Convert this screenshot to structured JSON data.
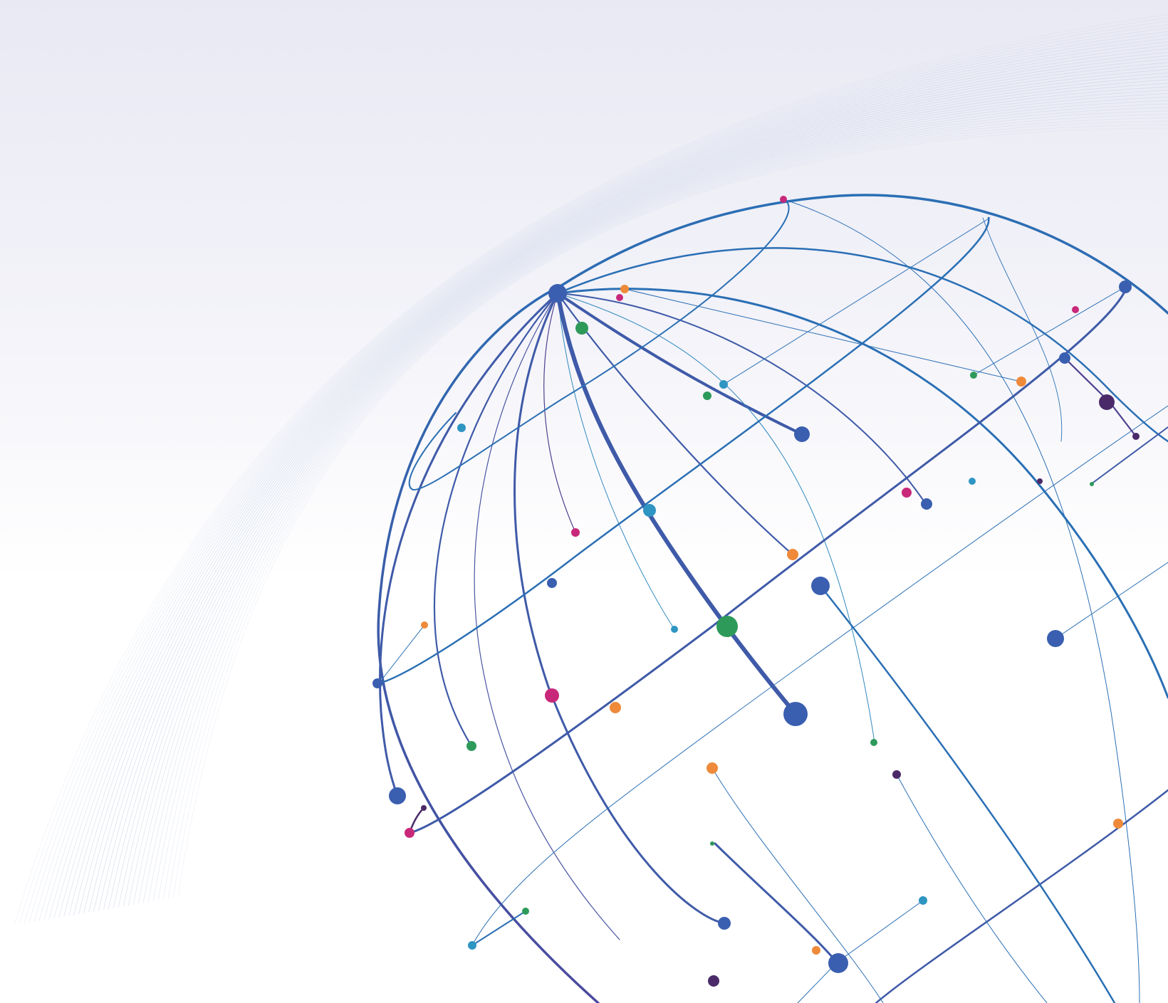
{
  "image": {
    "kind": "abstract globe wireframe illustration",
    "colors": {
      "background_top": "#e9e9f4",
      "background_bottom": "#ffffff",
      "swoosh": "#c9d3e8",
      "line_blue": "#2a6fb4",
      "line_indigo": "#4a4f9f",
      "node_blue": "#3a5fb0",
      "node_teal": "#2f95c2",
      "node_green": "#2e9a5a",
      "node_orange": "#ee8a3a",
      "node_magenta": "#c8287a",
      "node_purple": "#4a2a68"
    },
    "icons": [
      "globe-graphic",
      "network-node"
    ]
  }
}
